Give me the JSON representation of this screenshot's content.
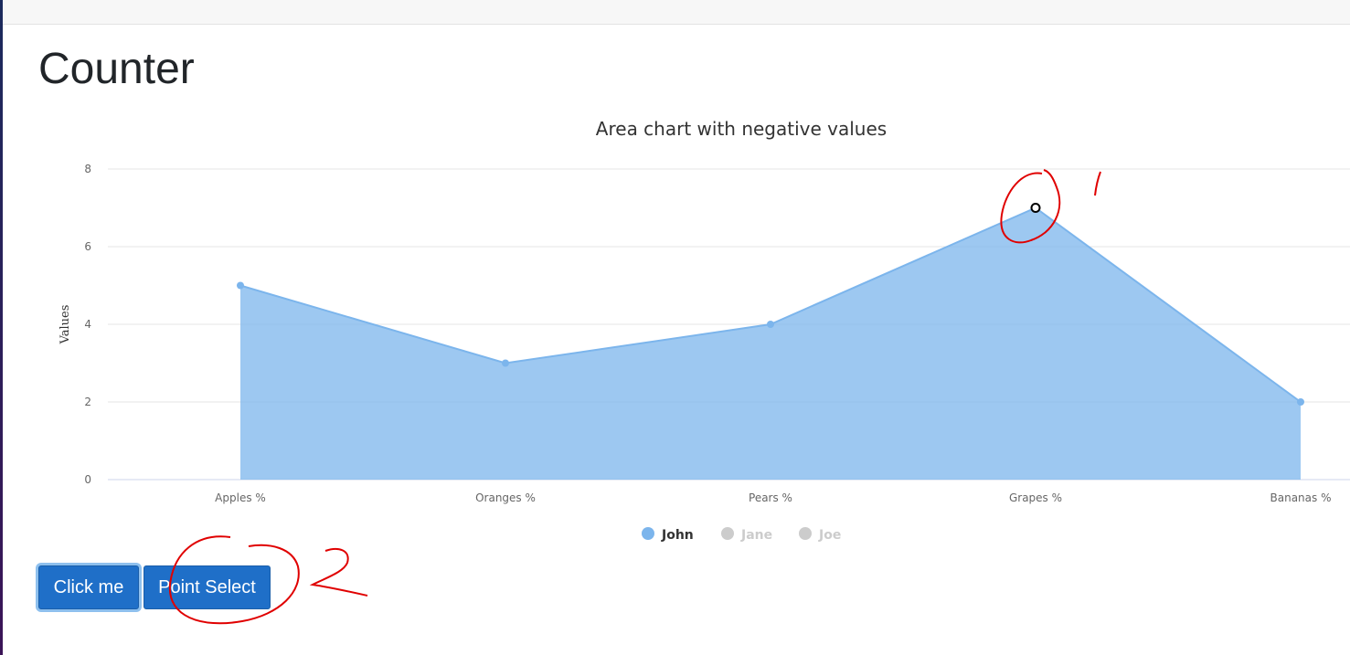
{
  "page": {
    "title": "Counter"
  },
  "buttons": {
    "click_label": "Click me",
    "point_select_label": "Point Select"
  },
  "chart_data": {
    "type": "area",
    "title": "Area chart with negative values",
    "ylabel": "Values",
    "xlabel": "",
    "ylim": [
      0,
      8
    ],
    "yticks": [
      0,
      2,
      4,
      6,
      8
    ],
    "categories": [
      "Apples %",
      "Oranges %",
      "Pears %",
      "Grapes %",
      "Bananas %"
    ],
    "series": [
      {
        "name": "John",
        "values": [
          5,
          3,
          4,
          7,
          2
        ],
        "visible": true,
        "color": "#7cb5ec"
      },
      {
        "name": "Jane",
        "visible": false,
        "color": "#cccccc"
      },
      {
        "name": "Joe",
        "visible": false,
        "color": "#cccccc"
      }
    ],
    "selected_point": {
      "category": "Grapes %",
      "value": 7
    },
    "grid": true,
    "legend_position": "bottom-center"
  },
  "annotations": {
    "mark_one": "1",
    "mark_two": "2",
    "color": "#e00000"
  }
}
